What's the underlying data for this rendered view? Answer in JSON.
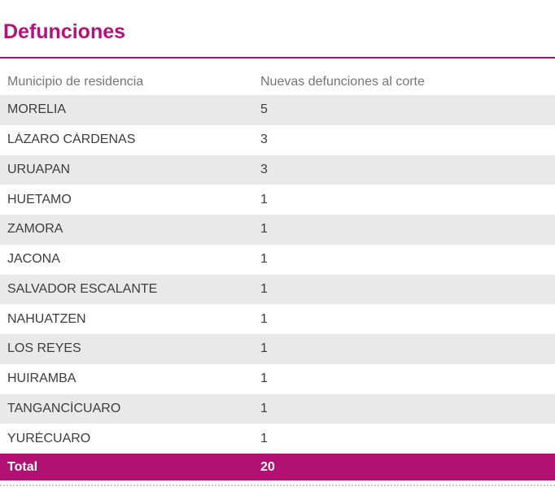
{
  "title": "Defunciones",
  "colors": {
    "title_text": "#b3127b",
    "divider": "#a6116f",
    "total_row_bg": "#b01173",
    "total_row_text": "#ffffff",
    "alt_row_bg": "#e9e9e9",
    "header_text": "#757575",
    "body_text": "#3d3d3d",
    "bottom_border": "#c8c8c8"
  },
  "table": {
    "columns": [
      "Municipio de residencia",
      "Nuevas defunciones al corte"
    ],
    "rows": [
      [
        "MORELIA",
        5
      ],
      [
        "LÁZARO CÁRDENAS",
        3
      ],
      [
        "URUAPAN",
        3
      ],
      [
        "HUETAMO",
        1
      ],
      [
        "ZAMORA",
        1
      ],
      [
        "JACONA",
        1
      ],
      [
        "SALVADOR ESCALANTE",
        1
      ],
      [
        "NAHUATZEN",
        1
      ],
      [
        "LOS REYES",
        1
      ],
      [
        "HUIRAMBA",
        1
      ],
      [
        "TANGANCÍCUARO",
        1
      ],
      [
        "YURÉCUARO",
        1
      ]
    ],
    "total": {
      "label": "Total",
      "value": 20
    }
  },
  "chart_data": {
    "type": "table",
    "title": "Defunciones",
    "columns": [
      "Municipio de residencia",
      "Nuevas defunciones al corte"
    ],
    "categories": [
      "MORELIA",
      "LÁZARO CÁRDENAS",
      "URUAPAN",
      "HUETAMO",
      "ZAMORA",
      "JACONA",
      "SALVADOR ESCALANTE",
      "NAHUATZEN",
      "LOS REYES",
      "HUIRAMBA",
      "TANGANCÍCUARO",
      "YURÉCUARO"
    ],
    "values": [
      5,
      3,
      3,
      1,
      1,
      1,
      1,
      1,
      1,
      1,
      1,
      1
    ],
    "total": 20,
    "layout_hints": {
      "alternating_row_stripes": true,
      "first_data_row_shaded": true,
      "total_row_highlighted": true
    }
  }
}
